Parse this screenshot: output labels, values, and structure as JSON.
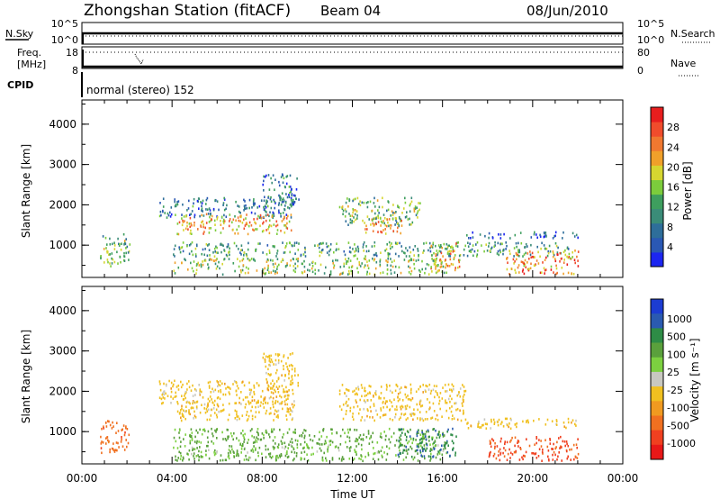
{
  "header": {
    "station": "Zhongshan Station (fitACF)",
    "beam": "Beam 04",
    "date": "08/Jun/2010"
  },
  "noise_panel": {
    "left_label": "N.Sky",
    "left_ticks": [
      "10^5",
      "10^0"
    ],
    "right_label": "N.Search",
    "right_ticks": [
      "10^5",
      "10^0"
    ]
  },
  "freq_panel": {
    "left_label_1": "Freq.",
    "left_label_2": "[MHz]",
    "left_ticks": [
      "18",
      "8"
    ],
    "right_label": "Nave",
    "right_ticks": [
      "80",
      "0"
    ],
    "cpid_label": "CPID",
    "cpid_text": "normal (stereo) 152"
  },
  "chart_data": [
    {
      "type": "heatmap",
      "name": "power",
      "ylabel": "Slant Range [km]",
      "xlabel": "",
      "x_ticks": [
        "00:00",
        "04:00",
        "08:00",
        "12:00",
        "16:00",
        "20:00",
        "00:00"
      ],
      "y_ticks": [
        1000,
        2000,
        3000,
        4000
      ],
      "ylim": [
        200,
        4600
      ],
      "xlim_hours": [
        0,
        24
      ],
      "colorbar": {
        "label": "Power [dB]",
        "ticks": [
          4,
          8,
          12,
          16,
          20,
          24,
          28
        ],
        "range": [
          0,
          32
        ],
        "colors": [
          "#1c26f0",
          "#2a58b4",
          "#2e6e9a",
          "#3a8c78",
          "#3e9e5e",
          "#7ccc3c",
          "#d6d630",
          "#f0a02a",
          "#f07830",
          "#f04c2c",
          "#e81e1e"
        ]
      },
      "regions": [
        {
          "t": [
            0.8,
            2.1
          ],
          "r": [
            500,
            1300
          ],
          "level": 14
        },
        {
          "t": [
            3.4,
            9.4
          ],
          "r": [
            1700,
            2200
          ],
          "level": 8
        },
        {
          "t": [
            4.2,
            9.4
          ],
          "r": [
            1300,
            1800
          ],
          "level": 22
        },
        {
          "t": [
            4.0,
            21.6
          ],
          "r": [
            750,
            1100
          ],
          "level": 12
        },
        {
          "t": [
            4.0,
            16.2
          ],
          "r": [
            300,
            700
          ],
          "level": 16
        },
        {
          "t": [
            8.0,
            9.6
          ],
          "r": [
            2000,
            2800
          ],
          "level": 8
        },
        {
          "t": [
            11.4,
            15.0
          ],
          "r": [
            1500,
            2200
          ],
          "level": 14
        },
        {
          "t": [
            12.5,
            14.2
          ],
          "r": [
            1300,
            1700
          ],
          "level": 22
        },
        {
          "t": [
            15.4,
            16.8
          ],
          "r": [
            400,
            1100
          ],
          "level": 22
        },
        {
          "t": [
            17.0,
            22.0
          ],
          "r": [
            1200,
            1350
          ],
          "level": 6
        },
        {
          "t": [
            18.8,
            22.0
          ],
          "r": [
            300,
            900
          ],
          "level": 24
        }
      ]
    },
    {
      "type": "heatmap",
      "name": "velocity",
      "ylabel": "Slant Range [km]",
      "xlabel": "Time UT",
      "x_ticks": [
        "00:00",
        "04:00",
        "08:00",
        "12:00",
        "16:00",
        "20:00",
        "00:00"
      ],
      "y_ticks": [
        1000,
        2000,
        3000,
        4000
      ],
      "ylim": [
        200,
        4600
      ],
      "xlim_hours": [
        0,
        24
      ],
      "colorbar": {
        "label": "Velocity [m s⁻¹]",
        "ticks": [
          1000,
          500,
          100,
          25,
          -25,
          -100,
          -500,
          -1000
        ],
        "colors": [
          "#1c3cd2",
          "#2a5ab0",
          "#2e8c46",
          "#5aa03c",
          "#7cd040",
          "#c8c8c0",
          "#f0c020",
          "#f09a20",
          "#f07020",
          "#f04020",
          "#e81818"
        ]
      },
      "regions": [
        {
          "t": [
            0.8,
            2.1
          ],
          "r": [
            500,
            1300
          ],
          "level": -200
        },
        {
          "t": [
            3.4,
            9.4
          ],
          "r": [
            1700,
            2300
          ],
          "level": 0
        },
        {
          "t": [
            4.2,
            9.4
          ],
          "r": [
            1300,
            1800
          ],
          "level": 0
        },
        {
          "t": [
            4.0,
            16.2
          ],
          "r": [
            700,
            1100
          ],
          "level": 150
        },
        {
          "t": [
            4.0,
            16.2
          ],
          "r": [
            300,
            700
          ],
          "level": 120
        },
        {
          "t": [
            8.0,
            9.6
          ],
          "r": [
            2000,
            3000
          ],
          "level": 0
        },
        {
          "t": [
            11.4,
            17.0
          ],
          "r": [
            1300,
            2200
          ],
          "level": 0
        },
        {
          "t": [
            14.0,
            16.6
          ],
          "r": [
            400,
            1100
          ],
          "level": 600
        },
        {
          "t": [
            17.0,
            22.0
          ],
          "r": [
            1100,
            1350
          ],
          "level": 0
        },
        {
          "t": [
            18.0,
            22.0
          ],
          "r": [
            300,
            900
          ],
          "level": -400
        }
      ]
    }
  ]
}
